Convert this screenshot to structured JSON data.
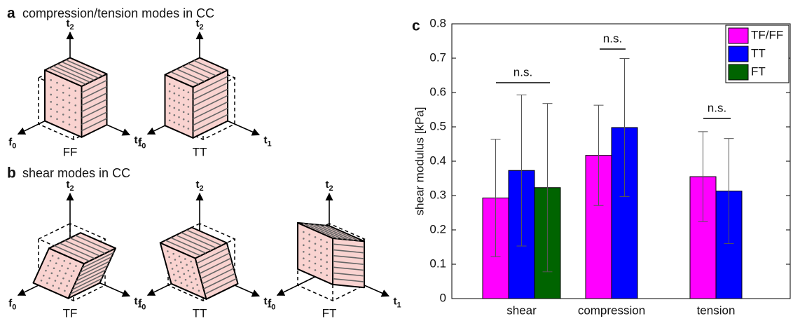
{
  "panel_a": {
    "letter": "a",
    "title": "compression/tension modes in CC",
    "diagrams": [
      {
        "label": "FF"
      },
      {
        "label": "TT"
      }
    ]
  },
  "panel_b": {
    "letter": "b",
    "title": "shear modes in CC",
    "diagrams": [
      {
        "label": "TF"
      },
      {
        "label": "TT"
      },
      {
        "label": "FT"
      }
    ]
  },
  "axis_labels": {
    "vertical": {
      "base": "t",
      "sub": "2"
    },
    "left": {
      "base": "f",
      "sub": "0"
    },
    "right": {
      "base": "t",
      "sub": "1"
    }
  },
  "chart_data": {
    "type": "bar",
    "panel_letter": "c",
    "ylabel": "shear modulus [kPa]",
    "categories": [
      "shear",
      "compression",
      "tension"
    ],
    "series": [
      {
        "name": "TF/FF",
        "color": "#ff00ff",
        "values": [
          0.293,
          0.417,
          0.355
        ],
        "errors": [
          0.171,
          0.146,
          0.131
        ]
      },
      {
        "name": "TT",
        "color": "#0000ff",
        "values": [
          0.373,
          0.498,
          0.313
        ],
        "errors": [
          0.22,
          0.201,
          0.153
        ]
      },
      {
        "name": "FT",
        "color": "#006400",
        "values": [
          0.323,
          null,
          null
        ],
        "errors": [
          0.245,
          null,
          null
        ]
      }
    ],
    "ylim": [
      0,
      0.8
    ],
    "yticks": [
      0,
      0.1,
      0.2,
      0.3,
      0.4,
      0.5,
      0.6,
      0.7,
      0.8
    ],
    "legend": "northeast",
    "annotations": [
      "n.s.",
      "n.s.",
      "n.s."
    ]
  }
}
